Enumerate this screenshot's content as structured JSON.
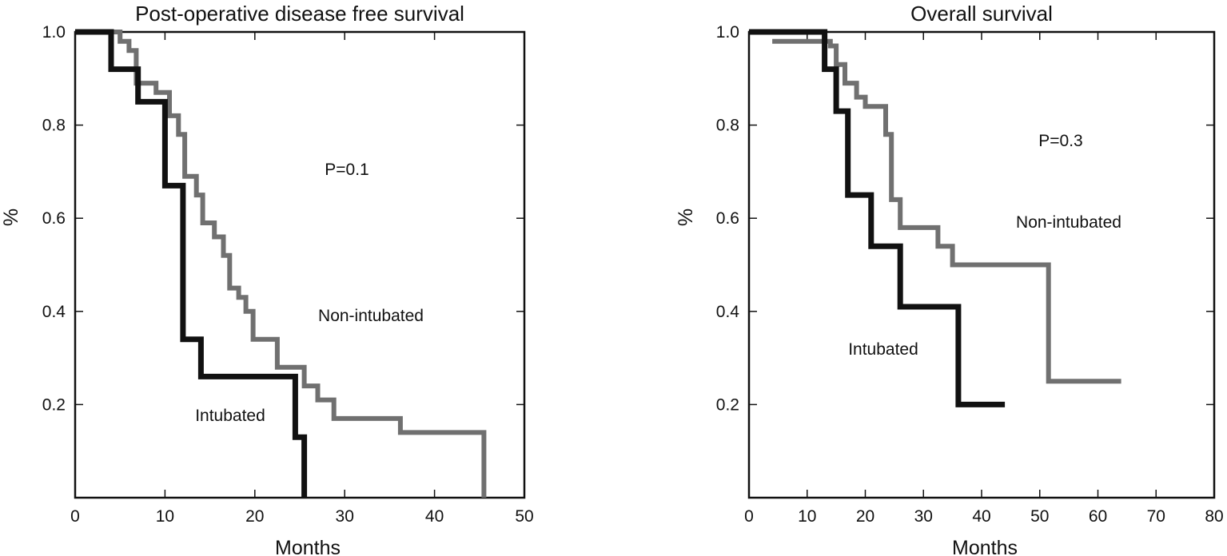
{
  "chart_data": [
    {
      "type": "line",
      "step": true,
      "title": "Post-operative disease free survival",
      "xlabel": "Months",
      "ylabel": "%",
      "xlim": [
        0,
        50
      ],
      "ylim": [
        0,
        1.0
      ],
      "x_ticks": [
        0,
        10,
        20,
        30,
        40,
        50
      ],
      "y_ticks": [
        0.2,
        0.4,
        0.6,
        0.8,
        1.0
      ],
      "annotation": "P=0.1",
      "series": [
        {
          "name": "Intubated",
          "color": "#111111",
          "points": [
            [
              0,
              1.0
            ],
            [
              4,
              1.0
            ],
            [
              4,
              0.92
            ],
            [
              7,
              0.92
            ],
            [
              7,
              0.85
            ],
            [
              10,
              0.85
            ],
            [
              10,
              0.67
            ],
            [
              12,
              0.67
            ],
            [
              12,
              0.34
            ],
            [
              14,
              0.34
            ],
            [
              14,
              0.26
            ],
            [
              24.5,
              0.26
            ],
            [
              24.5,
              0.13
            ],
            [
              25.5,
              0.13
            ],
            [
              25.5,
              0.0
            ]
          ]
        },
        {
          "name": "Non-intubated",
          "color": "#707070",
          "points": [
            [
              0,
              1.0
            ],
            [
              5,
              1.0
            ],
            [
              5,
              0.98
            ],
            [
              6,
              0.98
            ],
            [
              6,
              0.96
            ],
            [
              6.8,
              0.96
            ],
            [
              6.8,
              0.89
            ],
            [
              9,
              0.89
            ],
            [
              9,
              0.87
            ],
            [
              10.5,
              0.87
            ],
            [
              10.5,
              0.82
            ],
            [
              11.5,
              0.82
            ],
            [
              11.5,
              0.78
            ],
            [
              12.2,
              0.78
            ],
            [
              12.2,
              0.69
            ],
            [
              13.5,
              0.69
            ],
            [
              13.5,
              0.65
            ],
            [
              14.2,
              0.65
            ],
            [
              14.2,
              0.59
            ],
            [
              15.5,
              0.59
            ],
            [
              15.5,
              0.56
            ],
            [
              16.5,
              0.56
            ],
            [
              16.5,
              0.52
            ],
            [
              17.2,
              0.52
            ],
            [
              17.2,
              0.45
            ],
            [
              18.2,
              0.45
            ],
            [
              18.2,
              0.43
            ],
            [
              19,
              0.43
            ],
            [
              19,
              0.4
            ],
            [
              19.8,
              0.4
            ],
            [
              19.8,
              0.34
            ],
            [
              21,
              0.34
            ],
            [
              21,
              0.34
            ],
            [
              22.5,
              0.34
            ],
            [
              22.5,
              0.28
            ],
            [
              25.5,
              0.28
            ],
            [
              25.5,
              0.24
            ],
            [
              27,
              0.24
            ],
            [
              27,
              0.21
            ],
            [
              28.8,
              0.21
            ],
            [
              28.8,
              0.17
            ],
            [
              36.2,
              0.17
            ],
            [
              36.2,
              0.14
            ],
            [
              45.5,
              0.14
            ],
            [
              45.5,
              0.0
            ]
          ]
        }
      ]
    },
    {
      "type": "line",
      "step": true,
      "title": "Overall survival",
      "xlabel": "Months",
      "ylabel": "%",
      "xlim": [
        0,
        80
      ],
      "ylim": [
        0,
        1.0
      ],
      "x_ticks": [
        0,
        10,
        20,
        30,
        40,
        50,
        60,
        70,
        80
      ],
      "y_ticks": [
        0.2,
        0.4,
        0.6,
        0.8,
        1.0
      ],
      "annotation": "P=0.3",
      "series": [
        {
          "name": "Intubated",
          "color": "#111111",
          "points": [
            [
              0,
              1.0
            ],
            [
              13,
              1.0
            ],
            [
              13,
              0.92
            ],
            [
              15,
              0.92
            ],
            [
              15,
              0.83
            ],
            [
              17,
              0.83
            ],
            [
              17,
              0.65
            ],
            [
              21,
              0.65
            ],
            [
              21,
              0.54
            ],
            [
              26,
              0.54
            ],
            [
              26,
              0.41
            ],
            [
              36,
              0.41
            ],
            [
              36,
              0.2
            ],
            [
              44,
              0.2
            ]
          ]
        },
        {
          "name": "Non-intubated",
          "color": "#707070",
          "points": [
            [
              4,
              0.98
            ],
            [
              14,
              0.98
            ],
            [
              14,
              0.97
            ],
            [
              15,
              0.97
            ],
            [
              15,
              0.93
            ],
            [
              16.5,
              0.93
            ],
            [
              16.5,
              0.89
            ],
            [
              18.5,
              0.89
            ],
            [
              18.5,
              0.86
            ],
            [
              20,
              0.86
            ],
            [
              20,
              0.84
            ],
            [
              23.5,
              0.84
            ],
            [
              23.5,
              0.78
            ],
            [
              24.5,
              0.78
            ],
            [
              24.5,
              0.64
            ],
            [
              26,
              0.64
            ],
            [
              26,
              0.58
            ],
            [
              32.5,
              0.58
            ],
            [
              32.5,
              0.54
            ],
            [
              35,
              0.54
            ],
            [
              35,
              0.5
            ],
            [
              51.5,
              0.5
            ],
            [
              51.5,
              0.25
            ],
            [
              64,
              0.25
            ]
          ]
        }
      ]
    }
  ],
  "panels": [
    {
      "title": "Post-operative disease free survival",
      "xlabel": "Months",
      "ylabel": "%",
      "annotation": "P=0.1",
      "label_intubated": "Intubated",
      "label_non_intubated": "Non-intubated",
      "x_tick_labels": [
        "0",
        "10",
        "20",
        "30",
        "40",
        "50"
      ],
      "y_tick_labels": [
        "0.2",
        "0.4",
        "0.6",
        "0.8",
        "1.0"
      ]
    },
    {
      "title": "Overall survival",
      "xlabel": "Months",
      "ylabel": "%",
      "annotation": "P=0.3",
      "label_intubated": "Intubated",
      "label_non_intubated": "Non-intubated",
      "x_tick_labels": [
        "0",
        "10",
        "20",
        "30",
        "40",
        "50",
        "60",
        "70",
        "80"
      ],
      "y_tick_labels": [
        "0.2",
        "0.4",
        "0.6",
        "0.8",
        "1.0"
      ]
    }
  ]
}
